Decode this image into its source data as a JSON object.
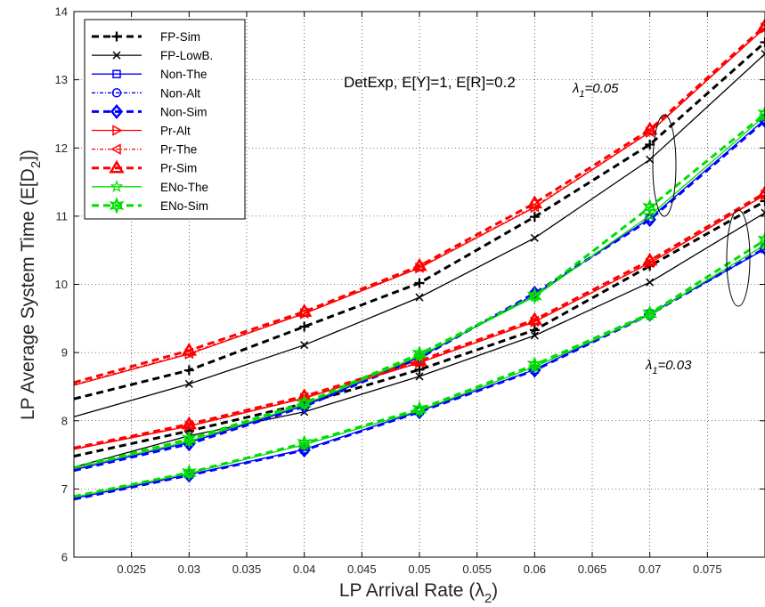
{
  "chart_data": {
    "type": "line",
    "xlabel": "LP Arrival Rate (λ",
    "xlabel_sub": "2",
    "xlabel_close": ")",
    "ylabel": "LP Average System Time (E[D",
    "ylabel_sub": "2",
    "ylabel_close": "])",
    "xlim": [
      0.02,
      0.08
    ],
    "ylim": [
      6,
      14
    ],
    "xticks": [
      0.025,
      0.03,
      0.035,
      0.04,
      0.045,
      0.05,
      0.055,
      0.06,
      0.065,
      0.07,
      0.075
    ],
    "xtick_labels": [
      "0.025",
      "0.03",
      "0.035",
      "0.04",
      "0.045",
      "0.05",
      "0.055",
      "0.06",
      "0.065",
      "0.07",
      "0.075"
    ],
    "yticks": [
      6,
      7,
      8,
      9,
      10,
      11,
      12,
      13,
      14
    ],
    "ytick_labels": [
      "6",
      "7",
      "8",
      "9",
      "10",
      "11",
      "12",
      "13",
      "14"
    ],
    "grid": true,
    "legend_position": "top-left",
    "annotation": "DetExp, E[Y]=1, E[R]=0.2",
    "group_labels": [
      {
        "prefix": "λ",
        "sub": "1",
        "text": "=0.05"
      },
      {
        "prefix": "λ",
        "sub": "1",
        "text": "=0.03"
      }
    ],
    "x": [
      0.02,
      0.03,
      0.04,
      0.05,
      0.06,
      0.07,
      0.08
    ],
    "series": [
      {
        "name": "FP-Sim",
        "color": "#000000",
        "dash": "8,5",
        "width": 3,
        "marker": "plus",
        "groups": [
          [
            8.32,
            8.74,
            9.38,
            10.02,
            10.99,
            12.05,
            13.55
          ],
          [
            7.48,
            7.85,
            8.25,
            8.75,
            9.33,
            10.27,
            11.22
          ]
        ]
      },
      {
        "name": "FP-LowB.",
        "color": "#000000",
        "dash": "",
        "width": 1.3,
        "marker": "x",
        "groups": [
          [
            8.06,
            8.54,
            9.11,
            9.81,
            10.68,
            11.83,
            13.38
          ],
          [
            7.32,
            7.78,
            8.13,
            8.65,
            9.25,
            10.03,
            11.05
          ]
        ]
      },
      {
        "name": "Non-The",
        "color": "#0000ff",
        "dash": "",
        "width": 1.3,
        "marker": "square",
        "groups": [
          [
            7.28,
            7.68,
            8.22,
            8.93,
            9.85,
            10.97,
            12.42
          ],
          [
            6.86,
            7.21,
            7.58,
            8.14,
            8.75,
            9.57,
            10.52
          ]
        ]
      },
      {
        "name": "Non-Alt",
        "color": "#0000ff",
        "dash": "4,2,1,2",
        "width": 1.3,
        "marker": "circle",
        "groups": [
          [
            7.28,
            7.68,
            8.22,
            8.93,
            9.85,
            10.97,
            12.42
          ],
          [
            6.86,
            7.21,
            7.58,
            8.14,
            8.75,
            9.57,
            10.52
          ]
        ]
      },
      {
        "name": "Non-Sim",
        "color": "#0000ff",
        "dash": "8,5",
        "width": 3,
        "marker": "diamond",
        "groups": [
          [
            7.27,
            7.66,
            8.21,
            8.92,
            9.87,
            10.95,
            12.4
          ],
          [
            6.85,
            7.2,
            7.57,
            8.13,
            8.74,
            9.56,
            10.53
          ]
        ]
      },
      {
        "name": "Pr-Alt",
        "color": "#ff0000",
        "dash": "",
        "width": 1.3,
        "marker": "triangle-right",
        "groups": [
          [
            8.52,
            8.98,
            9.57,
            10.24,
            11.13,
            12.23,
            13.76
          ],
          [
            7.58,
            7.92,
            8.33,
            8.85,
            9.45,
            10.31,
            11.31
          ]
        ]
      },
      {
        "name": "Pr-The",
        "color": "#ff0000",
        "dash": "4,2,1,2",
        "width": 1.3,
        "marker": "triangle-left",
        "groups": [
          [
            8.53,
            8.99,
            9.58,
            10.25,
            11.14,
            12.24,
            13.77
          ],
          [
            7.59,
            7.93,
            8.34,
            8.86,
            9.46,
            10.32,
            11.32
          ]
        ]
      },
      {
        "name": "Pr-Sim",
        "color": "#ff0000",
        "dash": "8,5",
        "width": 3,
        "marker": "triangle-up",
        "groups": [
          [
            8.56,
            9.03,
            9.6,
            10.27,
            11.19,
            12.27,
            13.79
          ],
          [
            7.6,
            7.95,
            8.36,
            8.88,
            9.48,
            10.35,
            11.34
          ]
        ]
      },
      {
        "name": "ENo-The",
        "color": "#00dd00",
        "dash": "",
        "width": 1.3,
        "marker": "star",
        "groups": [
          [
            7.3,
            7.7,
            8.24,
            8.95,
            9.82,
            11.01,
            12.47
          ],
          [
            6.88,
            7.23,
            7.65,
            8.15,
            8.79,
            9.55,
            10.58
          ]
        ]
      },
      {
        "name": "ENo-Sim",
        "color": "#00dd00",
        "dash": "8,5",
        "width": 3,
        "marker": "hexstar",
        "groups": [
          [
            7.31,
            7.73,
            8.26,
            8.98,
            9.83,
            11.13,
            12.5
          ],
          [
            6.89,
            7.24,
            7.67,
            8.17,
            8.82,
            9.57,
            10.65
          ]
        ]
      }
    ]
  }
}
